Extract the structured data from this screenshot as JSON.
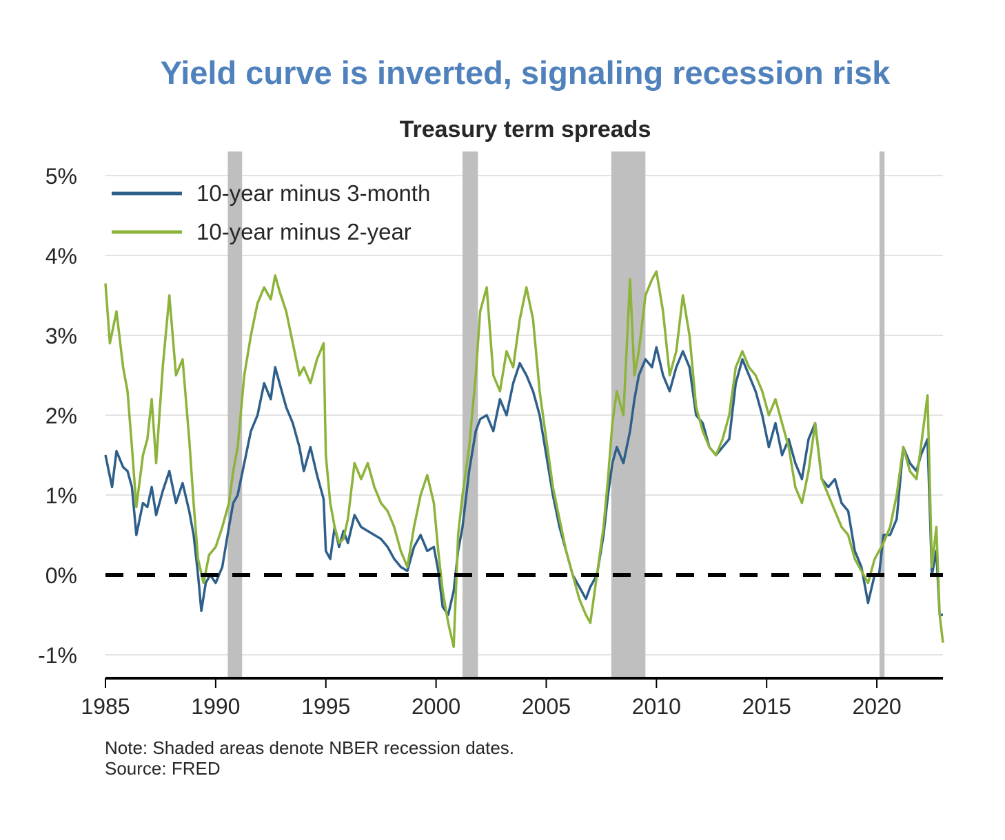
{
  "chart_data": {
    "type": "line",
    "title": "Yield curve is inverted, signaling recession risk",
    "subtitle": "Treasury term spreads",
    "xlabel": "",
    "ylabel": "",
    "xlim": [
      1985,
      2023
    ],
    "ylim": [
      -1.3,
      5.3
    ],
    "x_ticks": [
      {
        "value": 1985,
        "label": "1985"
      },
      {
        "value": 1990,
        "label": "1990"
      },
      {
        "value": 1995,
        "label": "1995"
      },
      {
        "value": 2000,
        "label": "2000"
      },
      {
        "value": 2005,
        "label": "2005"
      },
      {
        "value": 2010,
        "label": "2010"
      },
      {
        "value": 2015,
        "label": "2015"
      },
      {
        "value": 2020,
        "label": "2020"
      }
    ],
    "y_ticks": [
      {
        "value": 5,
        "label": "5%"
      },
      {
        "value": 4,
        "label": "4%"
      },
      {
        "value": 3,
        "label": "3%"
      },
      {
        "value": 2,
        "label": "2%"
      },
      {
        "value": 1,
        "label": "1%"
      },
      {
        "value": 0,
        "label": "0%"
      },
      {
        "value": -1,
        "label": "-1%"
      }
    ],
    "grid": "horizontal",
    "legend_position": "top-left",
    "zero_line": {
      "value": 0,
      "style": "dashed",
      "color": "#000000"
    },
    "recessions": [
      [
        1990.55,
        1991.2
      ],
      [
        2001.2,
        2001.9
      ],
      [
        2007.95,
        2009.5
      ],
      [
        2020.12,
        2020.35
      ]
    ],
    "series": [
      {
        "name": "10-year minus 3-month",
        "color": "#2e5f8a",
        "points": [
          [
            1985.0,
            1.5
          ],
          [
            1985.3,
            1.1
          ],
          [
            1985.5,
            1.55
          ],
          [
            1985.8,
            1.35
          ],
          [
            1986.0,
            1.3
          ],
          [
            1986.2,
            1.1
          ],
          [
            1986.4,
            0.5
          ],
          [
            1986.7,
            0.9
          ],
          [
            1986.9,
            0.85
          ],
          [
            1987.1,
            1.1
          ],
          [
            1987.3,
            0.75
          ],
          [
            1987.6,
            1.05
          ],
          [
            1987.9,
            1.3
          ],
          [
            1988.2,
            0.9
          ],
          [
            1988.5,
            1.15
          ],
          [
            1988.8,
            0.8
          ],
          [
            1989.0,
            0.5
          ],
          [
            1989.2,
            0.0
          ],
          [
            1989.35,
            -0.45
          ],
          [
            1989.55,
            -0.1
          ],
          [
            1989.75,
            0.0
          ],
          [
            1990.0,
            -0.1
          ],
          [
            1990.3,
            0.1
          ],
          [
            1990.6,
            0.6
          ],
          [
            1990.8,
            0.9
          ],
          [
            1991.0,
            1.0
          ],
          [
            1991.3,
            1.4
          ],
          [
            1991.6,
            1.8
          ],
          [
            1991.9,
            2.0
          ],
          [
            1992.2,
            2.4
          ],
          [
            1992.5,
            2.2
          ],
          [
            1992.7,
            2.6
          ],
          [
            1992.9,
            2.4
          ],
          [
            1993.2,
            2.1
          ],
          [
            1993.5,
            1.9
          ],
          [
            1993.8,
            1.6
          ],
          [
            1994.0,
            1.3
          ],
          [
            1994.3,
            1.6
          ],
          [
            1994.6,
            1.25
          ],
          [
            1994.9,
            0.95
          ],
          [
            1995.0,
            0.3
          ],
          [
            1995.2,
            0.2
          ],
          [
            1995.4,
            0.6
          ],
          [
            1995.6,
            0.35
          ],
          [
            1995.8,
            0.55
          ],
          [
            1996.0,
            0.4
          ],
          [
            1996.3,
            0.75
          ],
          [
            1996.6,
            0.6
          ],
          [
            1996.9,
            0.55
          ],
          [
            1997.2,
            0.5
          ],
          [
            1997.5,
            0.45
          ],
          [
            1997.8,
            0.35
          ],
          [
            1998.1,
            0.2
          ],
          [
            1998.4,
            0.1
          ],
          [
            1998.7,
            0.05
          ],
          [
            1999.0,
            0.35
          ],
          [
            1999.3,
            0.5
          ],
          [
            1999.6,
            0.3
          ],
          [
            1999.9,
            0.35
          ],
          [
            2000.1,
            0.05
          ],
          [
            2000.3,
            -0.4
          ],
          [
            2000.55,
            -0.5
          ],
          [
            2000.8,
            -0.2
          ],
          [
            2001.0,
            0.3
          ],
          [
            2001.2,
            0.6
          ],
          [
            2001.5,
            1.3
          ],
          [
            2001.8,
            1.8
          ],
          [
            2002.0,
            1.95
          ],
          [
            2002.3,
            2.0
          ],
          [
            2002.6,
            1.8
          ],
          [
            2002.9,
            2.2
          ],
          [
            2003.2,
            2.0
          ],
          [
            2003.5,
            2.4
          ],
          [
            2003.8,
            2.65
          ],
          [
            2004.1,
            2.5
          ],
          [
            2004.4,
            2.3
          ],
          [
            2004.7,
            2.0
          ],
          [
            2005.0,
            1.5
          ],
          [
            2005.3,
            1.0
          ],
          [
            2005.6,
            0.6
          ],
          [
            2005.9,
            0.3
          ],
          [
            2006.2,
            0.0
          ],
          [
            2006.5,
            -0.15
          ],
          [
            2006.8,
            -0.3
          ],
          [
            2007.0,
            -0.15
          ],
          [
            2007.3,
            0.0
          ],
          [
            2007.6,
            0.5
          ],
          [
            2007.8,
            1.0
          ],
          [
            2008.0,
            1.4
          ],
          [
            2008.2,
            1.6
          ],
          [
            2008.5,
            1.4
          ],
          [
            2008.8,
            1.8
          ],
          [
            2009.0,
            2.2
          ],
          [
            2009.2,
            2.5
          ],
          [
            2009.5,
            2.7
          ],
          [
            2009.8,
            2.6
          ],
          [
            2010.0,
            2.85
          ],
          [
            2010.3,
            2.5
          ],
          [
            2010.6,
            2.3
          ],
          [
            2010.9,
            2.6
          ],
          [
            2011.2,
            2.8
          ],
          [
            2011.5,
            2.6
          ],
          [
            2011.8,
            2.0
          ],
          [
            2012.1,
            1.9
          ],
          [
            2012.4,
            1.6
          ],
          [
            2012.7,
            1.5
          ],
          [
            2013.0,
            1.6
          ],
          [
            2013.3,
            1.7
          ],
          [
            2013.6,
            2.4
          ],
          [
            2013.9,
            2.7
          ],
          [
            2014.2,
            2.5
          ],
          [
            2014.5,
            2.3
          ],
          [
            2014.8,
            2.0
          ],
          [
            2015.1,
            1.6
          ],
          [
            2015.4,
            1.9
          ],
          [
            2015.7,
            1.5
          ],
          [
            2016.0,
            1.7
          ],
          [
            2016.3,
            1.4
          ],
          [
            2016.6,
            1.2
          ],
          [
            2016.9,
            1.7
          ],
          [
            2017.2,
            1.9
          ],
          [
            2017.5,
            1.2
          ],
          [
            2017.8,
            1.1
          ],
          [
            2018.1,
            1.2
          ],
          [
            2018.4,
            0.9
          ],
          [
            2018.7,
            0.8
          ],
          [
            2019.0,
            0.3
          ],
          [
            2019.3,
            0.1
          ],
          [
            2019.6,
            -0.35
          ],
          [
            2019.9,
            0.0
          ],
          [
            2020.1,
            0.0
          ],
          [
            2020.3,
            0.5
          ],
          [
            2020.6,
            0.5
          ],
          [
            2020.9,
            0.7
          ],
          [
            2021.2,
            1.6
          ],
          [
            2021.5,
            1.4
          ],
          [
            2021.8,
            1.3
          ],
          [
            2022.0,
            1.5
          ],
          [
            2022.3,
            1.7
          ],
          [
            2022.5,
            0.0
          ],
          [
            2022.7,
            0.3
          ],
          [
            2022.85,
            -0.5
          ],
          [
            2023.0,
            -0.5
          ]
        ]
      },
      {
        "name": "10-year minus 2-year",
        "color": "#8cb33a",
        "points": [
          [
            1985.0,
            3.65
          ],
          [
            1985.2,
            2.9
          ],
          [
            1985.5,
            3.3
          ],
          [
            1985.8,
            2.6
          ],
          [
            1986.0,
            2.3
          ],
          [
            1986.2,
            1.6
          ],
          [
            1986.4,
            0.85
          ],
          [
            1986.7,
            1.5
          ],
          [
            1986.9,
            1.7
          ],
          [
            1987.1,
            2.2
          ],
          [
            1987.3,
            1.4
          ],
          [
            1987.6,
            2.6
          ],
          [
            1987.9,
            3.5
          ],
          [
            1988.2,
            2.5
          ],
          [
            1988.5,
            2.7
          ],
          [
            1988.8,
            1.7
          ],
          [
            1989.0,
            0.9
          ],
          [
            1989.2,
            0.2
          ],
          [
            1989.45,
            -0.1
          ],
          [
            1989.7,
            0.25
          ],
          [
            1990.0,
            0.35
          ],
          [
            1990.3,
            0.6
          ],
          [
            1990.6,
            0.9
          ],
          [
            1990.8,
            1.3
          ],
          [
            1991.0,
            1.6
          ],
          [
            1991.3,
            2.5
          ],
          [
            1991.6,
            3.0
          ],
          [
            1991.9,
            3.4
          ],
          [
            1992.2,
            3.6
          ],
          [
            1992.5,
            3.45
          ],
          [
            1992.7,
            3.75
          ],
          [
            1992.9,
            3.55
          ],
          [
            1993.2,
            3.3
          ],
          [
            1993.5,
            2.9
          ],
          [
            1993.8,
            2.5
          ],
          [
            1994.0,
            2.6
          ],
          [
            1994.3,
            2.4
          ],
          [
            1994.6,
            2.7
          ],
          [
            1994.9,
            2.9
          ],
          [
            1995.0,
            1.5
          ],
          [
            1995.2,
            0.9
          ],
          [
            1995.4,
            0.6
          ],
          [
            1995.6,
            0.4
          ],
          [
            1995.8,
            0.45
          ],
          [
            1996.0,
            0.7
          ],
          [
            1996.3,
            1.4
          ],
          [
            1996.6,
            1.2
          ],
          [
            1996.9,
            1.4
          ],
          [
            1997.2,
            1.1
          ],
          [
            1997.5,
            0.9
          ],
          [
            1997.8,
            0.8
          ],
          [
            1998.1,
            0.6
          ],
          [
            1998.4,
            0.3
          ],
          [
            1998.7,
            0.1
          ],
          [
            1999.0,
            0.6
          ],
          [
            1999.3,
            1.0
          ],
          [
            1999.6,
            1.25
          ],
          [
            1999.9,
            0.9
          ],
          [
            2000.1,
            0.3
          ],
          [
            2000.3,
            -0.2
          ],
          [
            2000.55,
            -0.6
          ],
          [
            2000.8,
            -0.9
          ],
          [
            2001.0,
            0.5
          ],
          [
            2001.2,
            1.0
          ],
          [
            2001.5,
            1.6
          ],
          [
            2001.8,
            2.5
          ],
          [
            2002.0,
            3.3
          ],
          [
            2002.3,
            3.6
          ],
          [
            2002.6,
            2.5
          ],
          [
            2002.9,
            2.3
          ],
          [
            2003.2,
            2.8
          ],
          [
            2003.5,
            2.6
          ],
          [
            2003.8,
            3.2
          ],
          [
            2004.1,
            3.6
          ],
          [
            2004.4,
            3.2
          ],
          [
            2004.7,
            2.3
          ],
          [
            2005.0,
            1.7
          ],
          [
            2005.3,
            1.1
          ],
          [
            2005.6,
            0.7
          ],
          [
            2005.9,
            0.3
          ],
          [
            2006.2,
            0.0
          ],
          [
            2006.5,
            -0.3
          ],
          [
            2006.8,
            -0.5
          ],
          [
            2007.0,
            -0.6
          ],
          [
            2007.3,
            0.0
          ],
          [
            2007.6,
            0.6
          ],
          [
            2007.8,
            1.2
          ],
          [
            2008.0,
            1.9
          ],
          [
            2008.2,
            2.3
          ],
          [
            2008.5,
            2.0
          ],
          [
            2008.8,
            3.7
          ],
          [
            2009.0,
            2.5
          ],
          [
            2009.2,
            2.8
          ],
          [
            2009.5,
            3.5
          ],
          [
            2009.8,
            3.7
          ],
          [
            2010.0,
            3.8
          ],
          [
            2010.3,
            3.3
          ],
          [
            2010.6,
            2.5
          ],
          [
            2010.9,
            2.8
          ],
          [
            2011.2,
            3.5
          ],
          [
            2011.5,
            3.0
          ],
          [
            2011.8,
            2.1
          ],
          [
            2012.1,
            1.8
          ],
          [
            2012.4,
            1.6
          ],
          [
            2012.7,
            1.5
          ],
          [
            2013.0,
            1.7
          ],
          [
            2013.3,
            2.0
          ],
          [
            2013.6,
            2.6
          ],
          [
            2013.9,
            2.8
          ],
          [
            2014.2,
            2.6
          ],
          [
            2014.5,
            2.5
          ],
          [
            2014.8,
            2.3
          ],
          [
            2015.1,
            2.0
          ],
          [
            2015.4,
            2.2
          ],
          [
            2015.7,
            1.9
          ],
          [
            2016.0,
            1.6
          ],
          [
            2016.3,
            1.1
          ],
          [
            2016.6,
            0.9
          ],
          [
            2016.9,
            1.3
          ],
          [
            2017.2,
            1.9
          ],
          [
            2017.5,
            1.2
          ],
          [
            2017.8,
            1.0
          ],
          [
            2018.1,
            0.8
          ],
          [
            2018.4,
            0.6
          ],
          [
            2018.7,
            0.5
          ],
          [
            2019.0,
            0.2
          ],
          [
            2019.3,
            0.05
          ],
          [
            2019.6,
            -0.1
          ],
          [
            2019.9,
            0.2
          ],
          [
            2020.1,
            0.3
          ],
          [
            2020.3,
            0.4
          ],
          [
            2020.6,
            0.6
          ],
          [
            2020.9,
            1.0
          ],
          [
            2021.2,
            1.6
          ],
          [
            2021.5,
            1.3
          ],
          [
            2021.8,
            1.2
          ],
          [
            2022.0,
            1.6
          ],
          [
            2022.3,
            2.25
          ],
          [
            2022.5,
            0.1
          ],
          [
            2022.7,
            0.6
          ],
          [
            2022.85,
            -0.5
          ],
          [
            2023.0,
            -0.85
          ]
        ]
      }
    ],
    "notes": [
      "Note: Shaded areas denote NBER recession dates.",
      "Source: FRED"
    ]
  }
}
